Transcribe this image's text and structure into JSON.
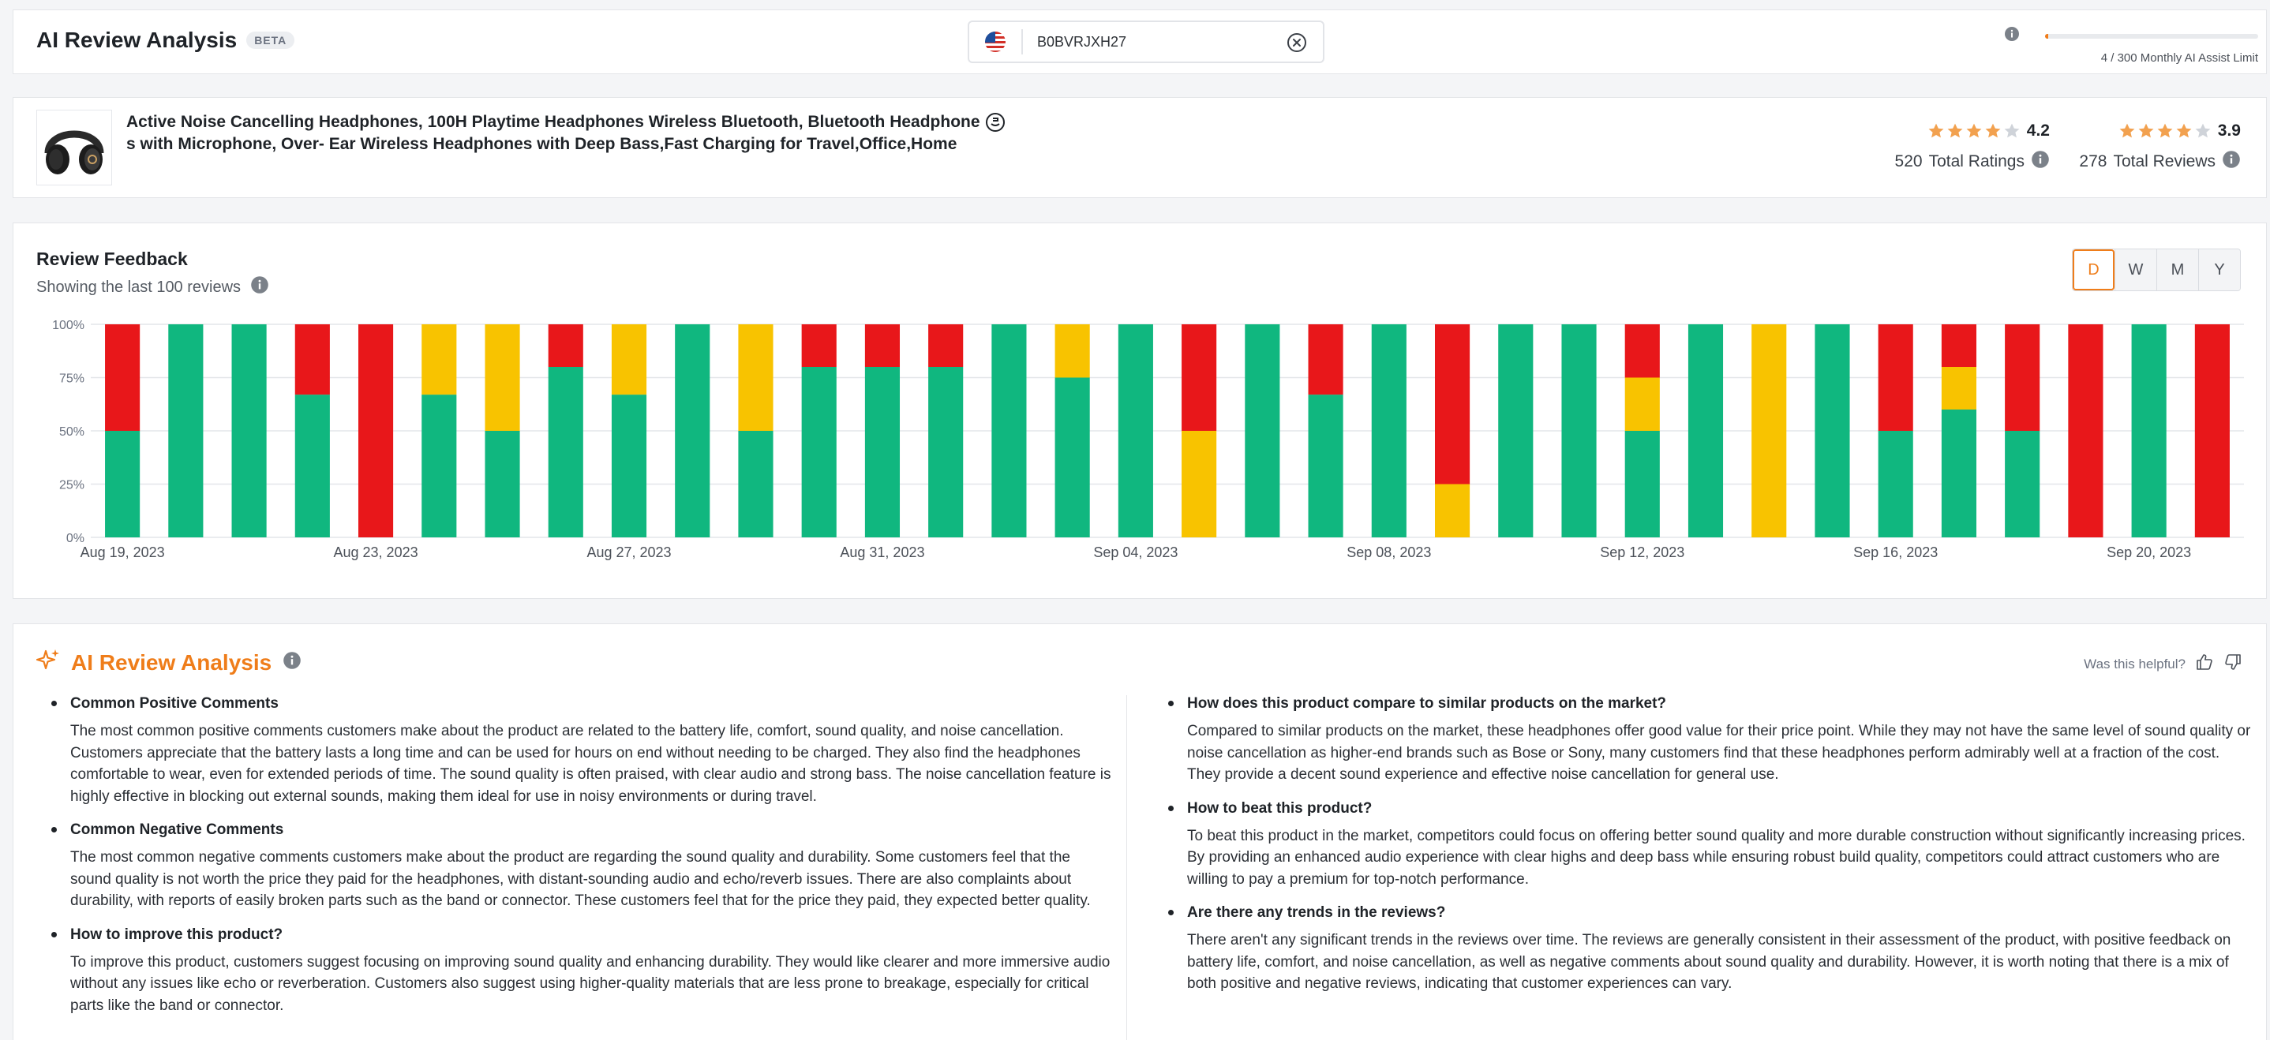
{
  "header": {
    "title": "AI Review Analysis",
    "badge": "BETA",
    "search": {
      "value": "B0BVRJXH27",
      "placeholder": "",
      "country_icon": "us-flag-icon"
    },
    "limit": {
      "used": 4,
      "total": 300,
      "fraction": 0.0133,
      "text": "4 / 300 Monthly AI Assist Limit"
    }
  },
  "product": {
    "title": "Active Noise Cancelling Headphones, 100H Playtime Headphones Wireless Bluetooth, Bluetooth Headphones with Microphone, Over- Ear Wireless Headphones with Deep Bass,Fast Charging for Travel,Office,Home",
    "ratings": [
      {
        "stars": 4.2,
        "value": "4.2",
        "count": "520",
        "label": "Total Ratings"
      },
      {
        "stars": 3.9,
        "value": "3.9",
        "count": "278",
        "label": "Total Reviews"
      }
    ]
  },
  "feedback": {
    "title": "Review Feedback",
    "subtitle": "Showing the last 100 reviews",
    "range_tabs": [
      {
        "label": "D",
        "active": true
      },
      {
        "label": "W",
        "active": false
      },
      {
        "label": "M",
        "active": false
      },
      {
        "label": "Y",
        "active": false
      }
    ]
  },
  "chart_data": {
    "type": "bar",
    "stacked": true,
    "categories": [
      "Aug 19, 2023",
      "Aug 20, 2023",
      "Aug 21, 2023",
      "Aug 22, 2023",
      "Aug 23, 2023",
      "Aug 24, 2023",
      "Aug 25, 2023",
      "Aug 26, 2023",
      "Aug 27, 2023",
      "Aug 28, 2023",
      "Aug 29, 2023",
      "Aug 30, 2023",
      "Aug 31, 2023",
      "Sep 01, 2023",
      "Sep 02, 2023",
      "Sep 03, 2023",
      "Sep 04, 2023",
      "Sep 05, 2023",
      "Sep 06, 2023",
      "Sep 07, 2023",
      "Sep 08, 2023",
      "Sep 09, 2023",
      "Sep 10, 2023",
      "Sep 11, 2023",
      "Sep 12, 2023",
      "Sep 13, 2023",
      "Sep 14, 2023",
      "Sep 15, 2023",
      "Sep 16, 2023",
      "Sep 17, 2023",
      "Sep 18, 2023",
      "Sep 19, 2023",
      "Sep 20, 2023",
      "Sep 21, 2023"
    ],
    "series": [
      {
        "color": "#10b77f",
        "values": [
          50,
          100,
          100,
          67,
          0,
          67,
          50,
          80,
          67,
          100,
          50,
          80,
          80,
          80,
          100,
          75,
          100,
          0,
          100,
          67,
          100,
          0,
          100,
          100,
          50,
          100,
          0,
          100,
          50,
          60,
          50,
          0,
          100,
          0
        ]
      },
      {
        "color": "#f8c300",
        "values": [
          0,
          0,
          0,
          0,
          0,
          33,
          50,
          0,
          33,
          0,
          50,
          0,
          0,
          0,
          0,
          25,
          0,
          50,
          0,
          0,
          0,
          25,
          0,
          0,
          25,
          0,
          100,
          0,
          0,
          20,
          0,
          0,
          0,
          0
        ]
      },
      {
        "color": "#e8171a",
        "values": [
          50,
          0,
          0,
          33,
          100,
          0,
          0,
          20,
          0,
          0,
          0,
          20,
          20,
          20,
          0,
          0,
          0,
          50,
          0,
          33,
          0,
          75,
          0,
          0,
          25,
          0,
          0,
          0,
          50,
          20,
          50,
          100,
          0,
          100
        ]
      }
    ],
    "tick_labels_x": [
      "Aug 19, 2023",
      "Aug 23, 2023",
      "Aug 27, 2023",
      "Aug 31, 2023",
      "Sep 04, 2023",
      "Sep 08, 2023",
      "Sep 12, 2023",
      "Sep 16, 2023",
      "Sep 20, 2023"
    ],
    "tick_labels_y": [
      "0%",
      "25%",
      "50%",
      "75%",
      "100%"
    ],
    "ylim": [
      0,
      100
    ],
    "grid": true
  },
  "analysis": {
    "title": "AI Review Analysis",
    "helpful_label": "Was this helpful?",
    "left": [
      {
        "q": "Common Positive Comments",
        "a": "The most common positive comments customers make about the product are related to the battery life, comfort, sound quality, and noise cancellation. Customers appreciate that the battery lasts a long time and can be used for hours on end without needing to be charged. They also find the headphones comfortable to wear, even for extended periods of time. The sound quality is often praised, with clear audio and strong bass. The noise cancellation feature is highly effective in blocking out external sounds, making them ideal for use in noisy environments or during travel."
      },
      {
        "q": "Common Negative Comments",
        "a": "The most common negative comments customers make about the product are regarding the sound quality and durability. Some customers feel that the sound quality is not worth the price they paid for the headphones, with distant-sounding audio and echo/reverb issues. There are also complaints about durability, with reports of easily broken parts such as the band or connector. These customers feel that for the price they paid, they expected better quality."
      },
      {
        "q": "How to improve this product?",
        "a": "To improve this product, customers suggest focusing on improving sound quality and enhancing durability. They would like clearer and more immersive audio without any issues like echo or reverberation. Customers also suggest using higher-quality materials that are less prone to breakage, especially for critical parts like the band or connector."
      }
    ],
    "right": [
      {
        "q": "How does this product compare to similar products on the market?",
        "a": "Compared to similar products on the market, these headphones offer good value for their price point. While they may not have the same level of sound quality or noise cancellation as higher-end brands such as Bose or Sony, many customers find that these headphones perform admirably well at a fraction of the cost. They provide a decent sound experience and effective noise cancellation for general use."
      },
      {
        "q": "How to beat this product?",
        "a": "To beat this product in the market, competitors could focus on offering better sound quality and more durable construction without significantly increasing prices. By providing an enhanced audio experience with clear highs and deep bass while ensuring robust build quality, competitors could attract customers who are willing to pay a premium for top-notch performance."
      },
      {
        "q": "Are there any trends in the reviews?",
        "a": "There aren't any significant trends in the reviews over time. The reviews are generally consistent in their assessment of the product, with positive feedback on battery life, comfort, and noise cancellation, as well as negative comments about sound quality and durability. However, it is worth noting that there is a mix of both positive and negative reviews, indicating that customer experiences can vary."
      }
    ]
  }
}
